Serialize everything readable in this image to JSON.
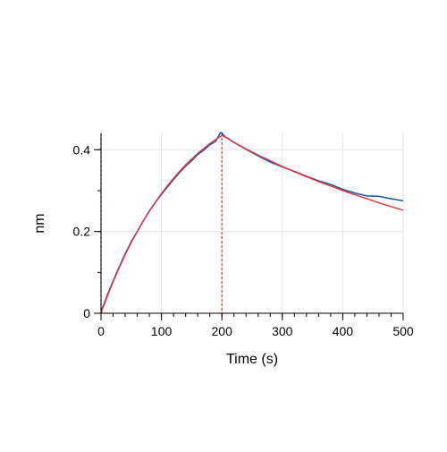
{
  "chart_data": {
    "type": "line",
    "title": "",
    "xlabel": "Time (s)",
    "ylabel": "nm",
    "xlim": [
      0,
      500
    ],
    "ylim": [
      0,
      0.44
    ],
    "xticks": [
      0,
      100,
      200,
      300,
      400,
      500
    ],
    "xtick_labels": [
      "0",
      "100",
      "200",
      "300",
      "400",
      "500"
    ],
    "xminor_step": 20,
    "yticks": [
      0,
      0.2,
      0.4
    ],
    "ytick_labels": [
      "0",
      "0.2",
      "0.4"
    ],
    "yminor_step": 0.1,
    "grid": true,
    "legend": "none",
    "vertical_markers": [
      {
        "x": 0,
        "color": "#8b0000"
      },
      {
        "x": 200,
        "color": "#e8323c"
      }
    ],
    "series": [
      {
        "role": "measured",
        "color": "#1f5fa8",
        "x": [
          0,
          1,
          2,
          5,
          10,
          20,
          30,
          40,
          50,
          60,
          70,
          80,
          90,
          100,
          110,
          120,
          130,
          140,
          150,
          160,
          170,
          180,
          190,
          195,
          198,
          200,
          205,
          210,
          220,
          240,
          260,
          280,
          300,
          320,
          340,
          360,
          380,
          400,
          420,
          440,
          460,
          480,
          500
        ],
        "y": [
          0.0,
          0.006,
          0.013,
          0.022,
          0.043,
          0.079,
          0.113,
          0.145,
          0.175,
          0.2,
          0.226,
          0.25,
          0.271,
          0.291,
          0.309,
          0.327,
          0.344,
          0.36,
          0.373,
          0.388,
          0.399,
          0.412,
          0.421,
          0.435,
          0.442,
          0.441,
          0.432,
          0.428,
          0.418,
          0.401,
          0.385,
          0.37,
          0.358,
          0.347,
          0.335,
          0.324,
          0.315,
          0.303,
          0.294,
          0.287,
          0.286,
          0.28,
          0.275
        ]
      },
      {
        "role": "fit",
        "color": "#e8323c",
        "x": [
          0,
          1,
          2,
          5,
          10,
          20,
          30,
          40,
          50,
          60,
          70,
          80,
          90,
          100,
          110,
          120,
          130,
          140,
          150,
          160,
          170,
          180,
          190,
          200,
          210,
          220,
          240,
          260,
          280,
          300,
          320,
          340,
          360,
          380,
          400,
          420,
          440,
          460,
          480,
          500
        ],
        "y": [
          0.0,
          0.004,
          0.01,
          0.02,
          0.04,
          0.077,
          0.111,
          0.143,
          0.173,
          0.2,
          0.226,
          0.25,
          0.272,
          0.293,
          0.312,
          0.33,
          0.347,
          0.363,
          0.377,
          0.391,
          0.403,
          0.415,
          0.425,
          0.435,
          0.427,
          0.418,
          0.402,
          0.387,
          0.373,
          0.359,
          0.346,
          0.334,
          0.322,
          0.311,
          0.3,
          0.29,
          0.28,
          0.27,
          0.261,
          0.252
        ]
      }
    ]
  }
}
